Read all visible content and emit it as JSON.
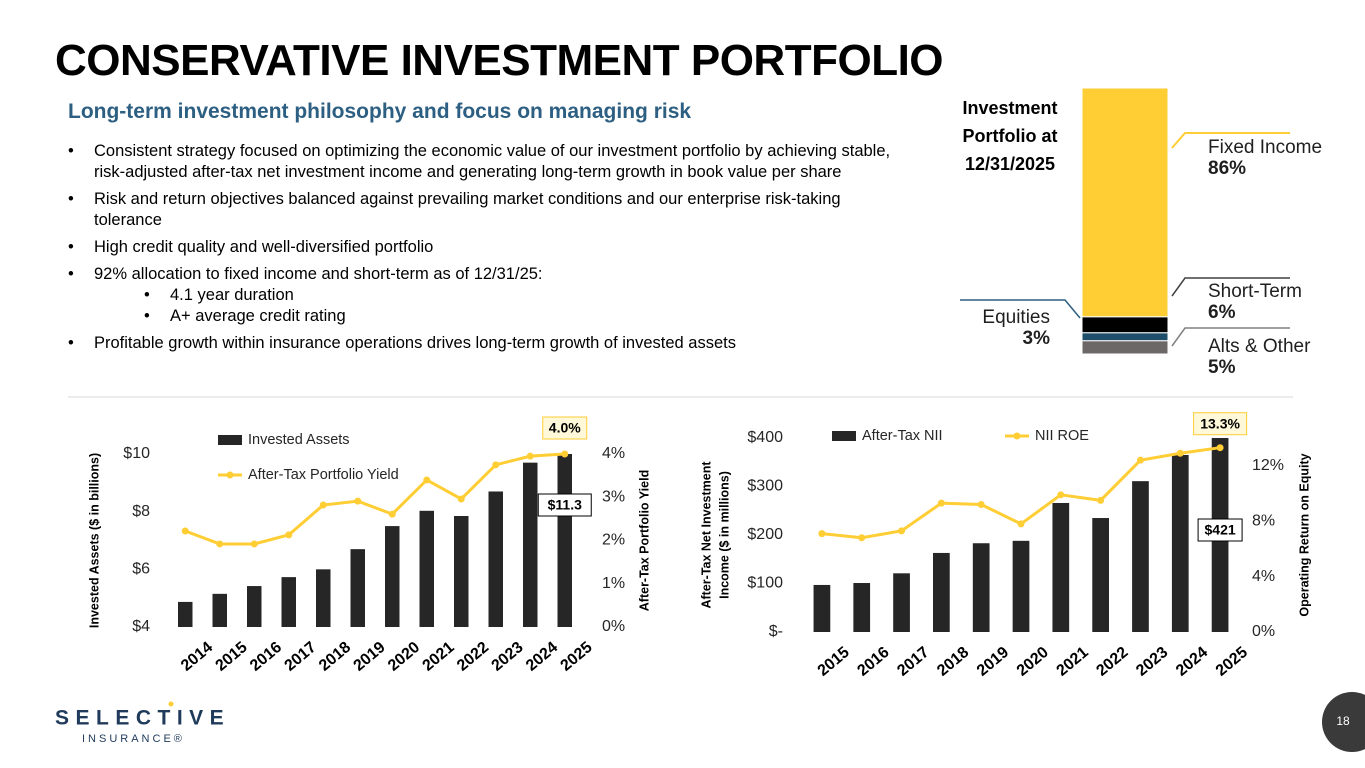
{
  "slide": {
    "title": "CONSERVATIVE INVESTMENT PORTFOLIO",
    "subtitle": "Long-term investment philosophy and focus on managing risk",
    "bullets": [
      "Consistent strategy focused on optimizing the economic value of our investment portfolio by achieving stable, risk-adjusted after-tax net investment income and generating long-term growth in book value per share",
      "Risk and return objectives balanced against prevailing market conditions and our enterprise risk-taking tolerance",
      "High credit quality and well-diversified portfolio",
      "92% allocation to fixed income and short-term as of 12/31/25:",
      "Profitable growth within insurance operations drives long-term growth of invested assets"
    ],
    "sub_bullets": [
      "4.1 year duration",
      "A+ average credit rating"
    ],
    "logo": "SELECTIVE",
    "logo_sub": "INSURANCE®",
    "page_number": "18"
  },
  "chart_data": [
    {
      "type": "stacked_bar",
      "title": "Investment Portfolio at 12/31/2025",
      "categories": [
        "Alts & Other",
        "Equities",
        "Short-Term",
        "Fixed Income"
      ],
      "values": [
        5,
        3,
        6,
        86
      ],
      "value_labels": [
        "5%",
        "3%",
        "6%",
        "86%"
      ],
      "colors": [
        "#6d6868",
        "#1f4e6b",
        "#000000",
        "#ffcd34"
      ]
    },
    {
      "type": "combo",
      "categories": [
        "2014",
        "2015",
        "2016",
        "2017",
        "2018",
        "2019",
        "2020",
        "2021",
        "2022",
        "2023",
        "2024",
        "2025"
      ],
      "ylabel": [
        "Invested Assets ($ in billions)"
      ],
      "y2label": "After-Tax Portfolio Yield",
      "ylim": [
        4,
        10
      ],
      "yticks": [
        {
          "value": 4,
          "label": "$4"
        },
        {
          "value": 6,
          "label": "$6"
        },
        {
          "value": 8,
          "label": "$8"
        },
        {
          "value": 10,
          "label": "$10"
        }
      ],
      "y2lim": [
        0,
        4
      ],
      "y2ticks": [
        {
          "value": 0,
          "label": "0%"
        },
        {
          "value": 1,
          "label": "1%"
        },
        {
          "value": 2,
          "label": "2%"
        },
        {
          "value": 3,
          "label": "3%"
        },
        {
          "value": 4,
          "label": "4%"
        }
      ],
      "series": [
        {
          "name": "Invested Assets",
          "type": "bar",
          "color": "#262626",
          "values": [
            4.87,
            5.15,
            5.42,
            5.73,
            6.0,
            6.7,
            7.5,
            8.03,
            7.85,
            8.7,
            9.7,
            11.3
          ],
          "value_labels": [
            null,
            null,
            null,
            null,
            null,
            null,
            null,
            null,
            null,
            null,
            null,
            "$11.3"
          ]
        },
        {
          "name": "After-Tax Portfolio Yield",
          "type": "line",
          "axis": "y2",
          "color": "#ffcd34",
          "values": [
            2.22,
            1.92,
            1.92,
            2.13,
            2.82,
            2.91,
            2.61,
            3.4,
            2.96,
            3.75,
            3.95,
            4.0
          ],
          "value_labels": [
            null,
            null,
            null,
            null,
            null,
            null,
            null,
            null,
            null,
            null,
            null,
            "4.0%"
          ]
        }
      ]
    },
    {
      "type": "combo",
      "categories": [
        "2015",
        "2016",
        "2017",
        "2018",
        "2019",
        "2020",
        "2021",
        "2022",
        "2023",
        "2024",
        "2025"
      ],
      "ylabel": [
        "After-Tax Net Investment",
        "Income ($ in millions)"
      ],
      "y2label": "Operating Return on Equity",
      "ylim": [
        0,
        400
      ],
      "yticks": [
        {
          "value": 0,
          "label": "$-"
        },
        {
          "value": 100,
          "label": "$100"
        },
        {
          "value": 200,
          "label": "$200"
        },
        {
          "value": 300,
          "label": "$300"
        },
        {
          "value": 400,
          "label": "$400"
        }
      ],
      "y2lim": [
        0,
        14
      ],
      "y2ticks": [
        {
          "value": 0,
          "label": "0%"
        },
        {
          "value": 4,
          "label": "4%"
        },
        {
          "value": 8,
          "label": "8%"
        },
        {
          "value": 12,
          "label": "12%"
        }
      ],
      "series": [
        {
          "name": "After-Tax NII",
          "type": "bar",
          "color": "#262626",
          "values": [
            97,
            101,
            121,
            163,
            183,
            188,
            266,
            235,
            311,
            365,
            421
          ],
          "value_labels": [
            null,
            null,
            null,
            null,
            null,
            null,
            null,
            null,
            null,
            null,
            "$421"
          ]
        },
        {
          "name": "NII ROE",
          "type": "line",
          "axis": "y2",
          "color": "#ffcd34",
          "values": [
            7.1,
            6.8,
            7.3,
            9.3,
            9.2,
            7.8,
            9.9,
            9.5,
            12.4,
            12.9,
            13.3
          ],
          "value_labels": [
            null,
            null,
            null,
            null,
            null,
            null,
            null,
            null,
            null,
            null,
            "13.3%"
          ]
        }
      ]
    }
  ]
}
